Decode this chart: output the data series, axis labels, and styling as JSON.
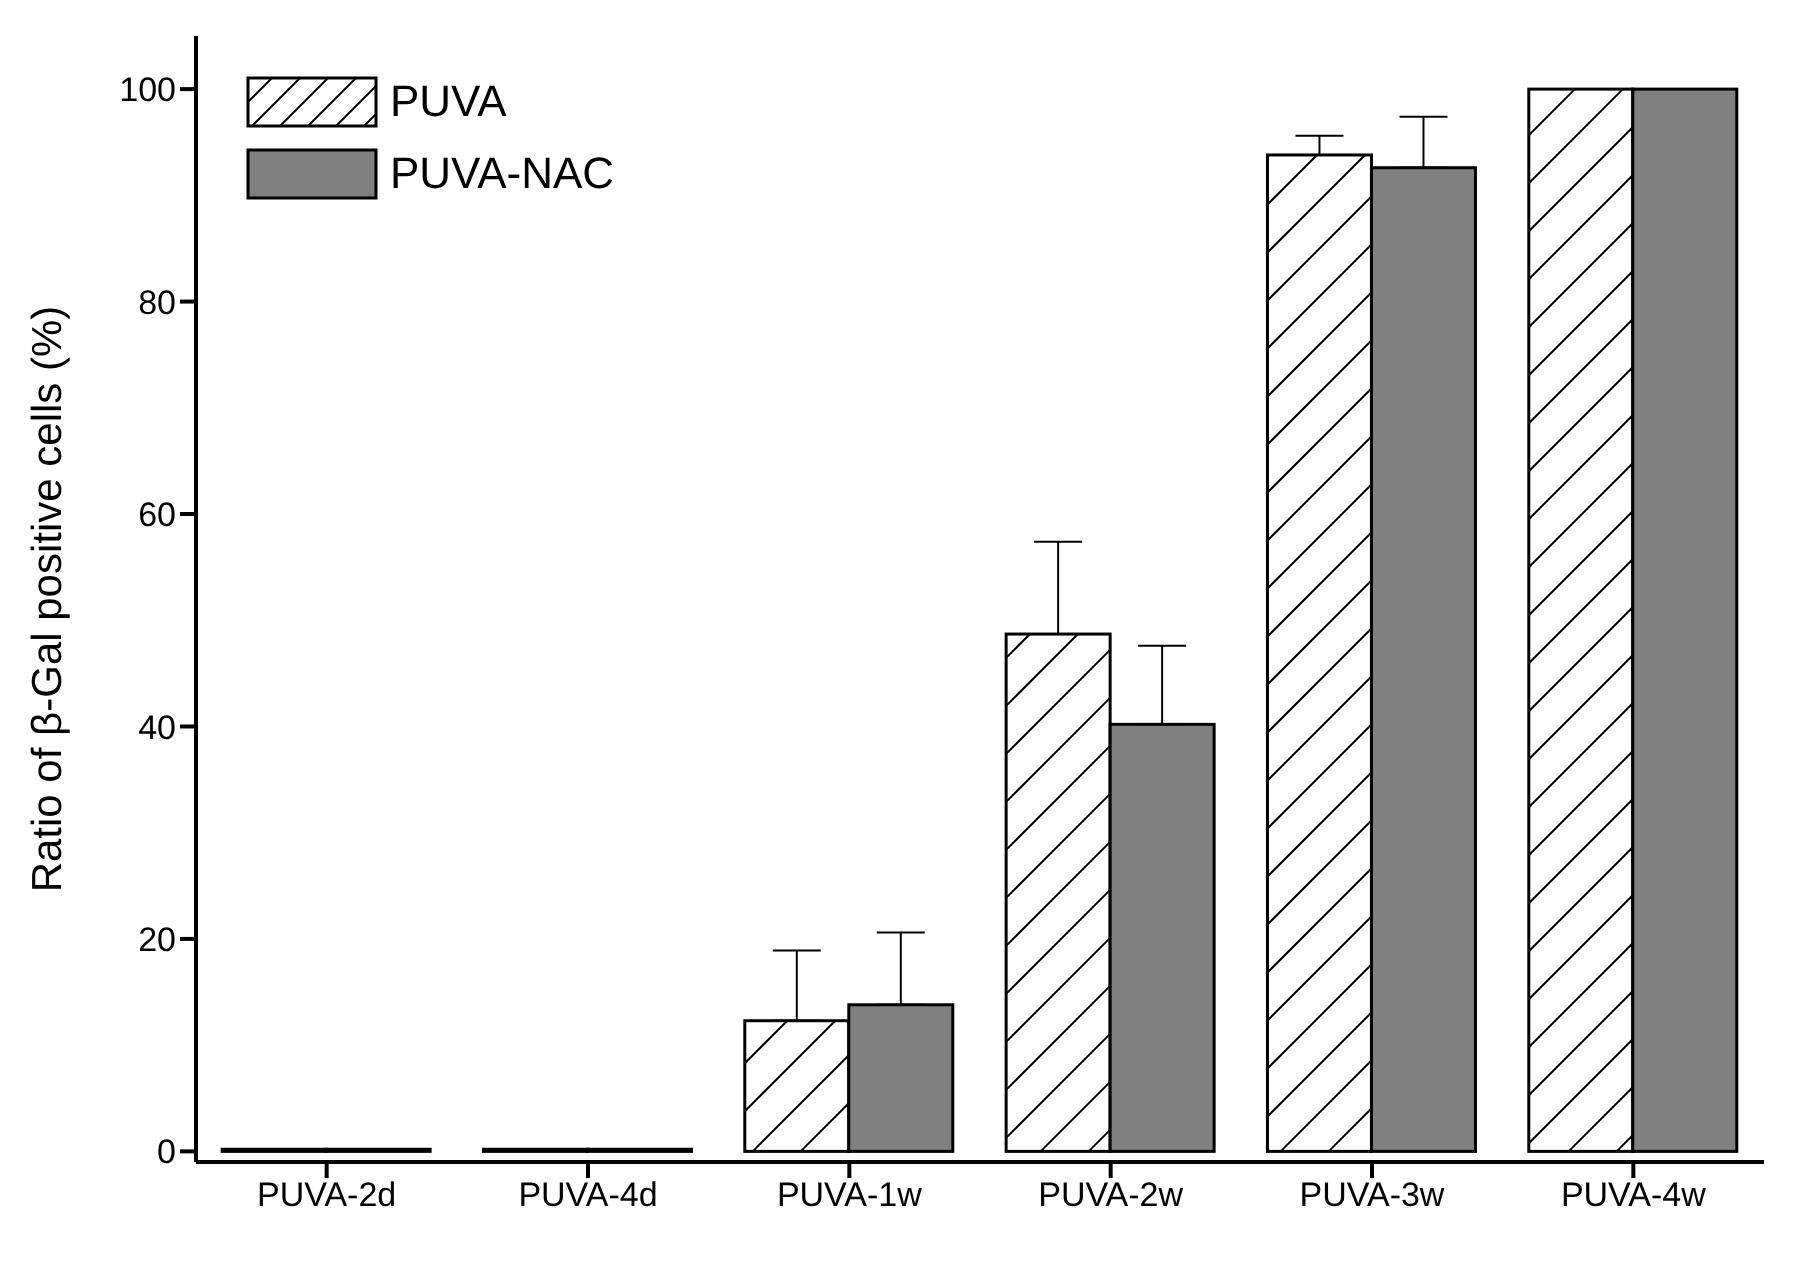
{
  "chart_data": {
    "type": "bar",
    "ylabel": "Ratio of β-Gal positive cells (%)",
    "categories": [
      "PUVA-2d",
      "PUVA-4d",
      "PUVA-1w",
      "PUVA-2w",
      "PUVA-3w",
      "PUVA-4w"
    ],
    "series": [
      {
        "name": "PUVA",
        "color": "#ffffff",
        "values": [
          0.2,
          0.2,
          12.3,
          48.7,
          93.8,
          100
        ],
        "errors": [
          null,
          null,
          [
            12.3,
            18.9
          ],
          [
            48.7,
            57.4
          ],
          [
            93.8,
            95.6
          ],
          null
        ]
      },
      {
        "name": "PUVA-NAC",
        "color": "#808080",
        "values": [
          0.2,
          0.2,
          13.8,
          40.2,
          92.6,
          100
        ],
        "errors": [
          null,
          null,
          [
            13.8,
            20.6
          ],
          [
            40.2,
            47.6
          ],
          [
            92.6,
            97.4
          ],
          null
        ]
      }
    ],
    "ylim": [
      -1,
      105
    ],
    "yticks": [
      0,
      20,
      40,
      60,
      80,
      100
    ],
    "grid": false,
    "legend": "top left"
  }
}
